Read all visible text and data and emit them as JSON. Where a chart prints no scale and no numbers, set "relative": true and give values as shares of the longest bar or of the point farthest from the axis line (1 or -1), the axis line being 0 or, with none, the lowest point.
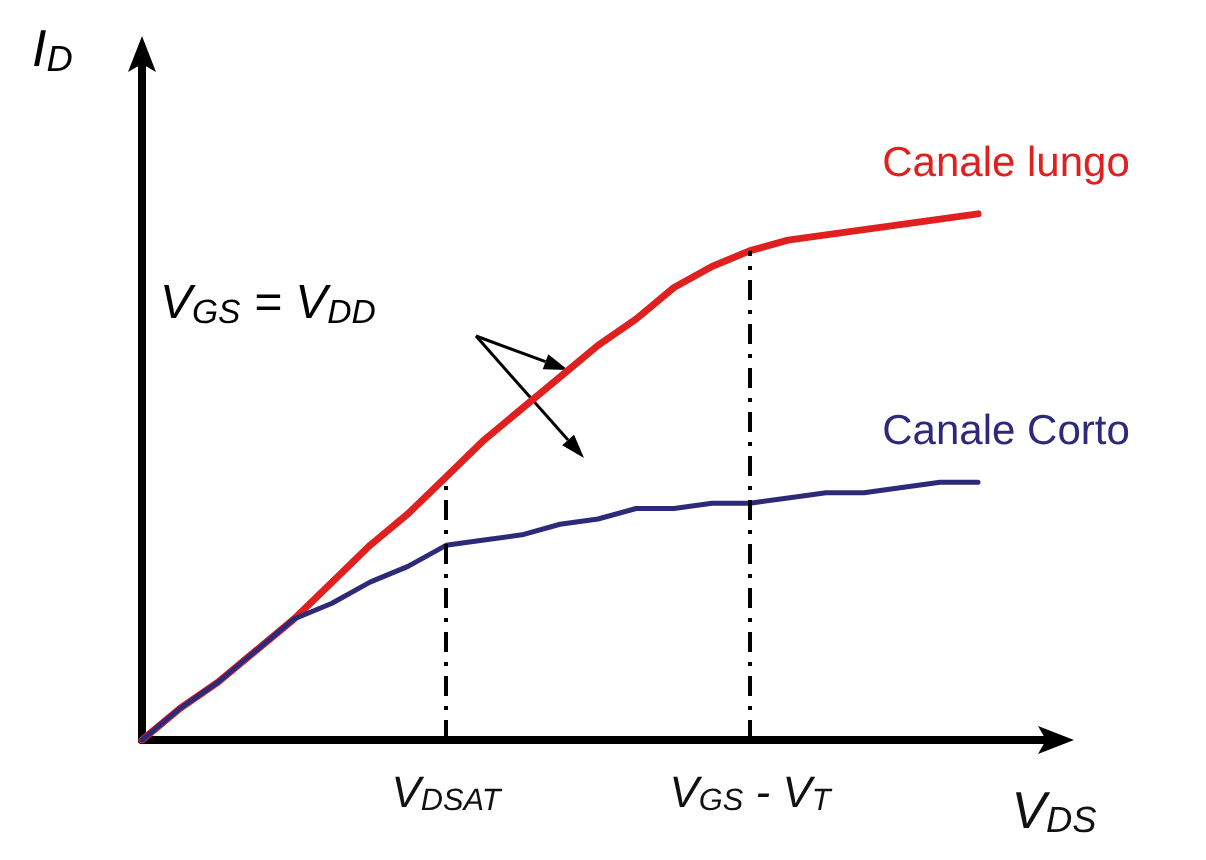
{
  "chart_data": {
    "type": "line",
    "relative": true,
    "xlabel": "V$_{DS}$",
    "ylabel": "I$_{D}$",
    "categories": [
      null,
      null,
      null,
      null,
      null,
      null,
      null,
      null,
      "V$_{DSAT}$",
      null,
      null,
      null,
      null,
      null,
      null,
      null,
      "V$_{GS}$ - V$_{T}$",
      null,
      null,
      null,
      null,
      null,
      null,
      null,
      null
    ],
    "series": [
      {
        "name": "Canale lungo",
        "color": "#e0201f",
        "values": [
          0,
          0.06,
          0.11,
          0.17,
          0.23,
          0.3,
          0.37,
          0.43,
          0.5,
          0.57,
          0.63,
          0.69,
          0.75,
          0.8,
          0.86,
          0.9,
          0.93,
          0.95,
          0.96,
          0.97,
          0.98,
          0.99,
          1,
          null,
          null
        ]
      },
      {
        "name": "Canale Corto",
        "color": "#2e2a7a",
        "values": [
          0,
          0.06,
          0.11,
          0.17,
          0.23,
          0.26,
          0.3,
          0.33,
          0.37,
          0.38,
          0.39,
          0.41,
          0.42,
          0.44,
          0.44,
          0.45,
          0.45,
          0.46,
          0.47,
          0.47,
          0.48,
          0.49,
          0.49,
          null,
          null
        ]
      }
    ],
    "ref_lines": [
      {
        "axis": "x",
        "value": "V$_{DSAT}$",
        "line_style": "dashed"
      },
      {
        "axis": "x",
        "value": "V$_{GS}$ - V$_{T}$",
        "line_style": "dashed"
      }
    ],
    "annotations": [
      "V$_{GS}$ = V$_{DD}$"
    ],
    "grid": false,
    "legend": false,
    "marker": "none",
    "line_style": "solid"
  }
}
